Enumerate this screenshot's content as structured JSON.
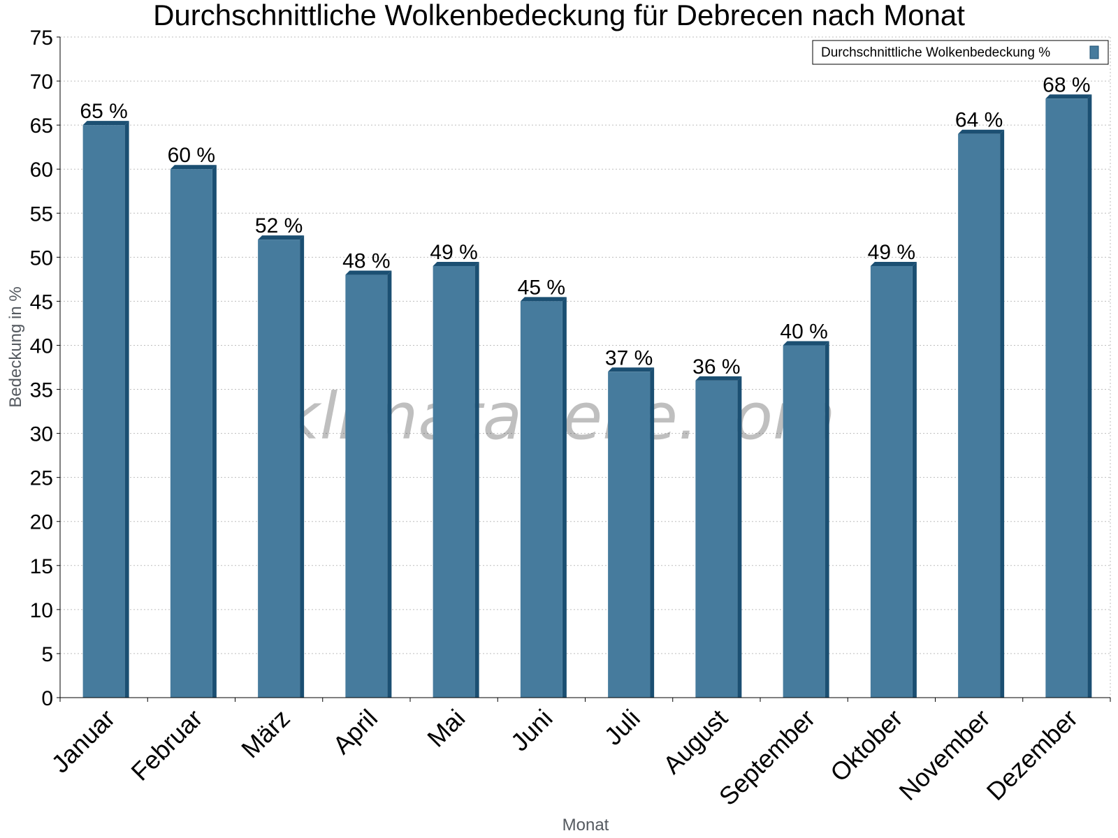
{
  "chart_data": {
    "type": "bar",
    "title": "Durchschnittliche Wolkenbedeckung für Debrecen nach Monat",
    "xlabel": "Monat",
    "ylabel": "Bedeckung in %",
    "categories": [
      "Januar",
      "Februar",
      "März",
      "April",
      "Mai",
      "Juni",
      "Juli",
      "August",
      "September",
      "Oktober",
      "November",
      "Dezember"
    ],
    "series": [
      {
        "name": "Durchschnittliche Wolkenbedeckung %",
        "values": [
          65,
          60,
          52,
          48,
          49,
          45,
          37,
          36,
          40,
          49,
          64,
          68
        ]
      }
    ],
    "data_labels": [
      "65 %",
      "60 %",
      "52 %",
      "48 %",
      "49 %",
      "45 %",
      "37 %",
      "36 %",
      "40 %",
      "49 %",
      "64 %",
      "68 %"
    ],
    "ylim": [
      0,
      75
    ],
    "yticks": [
      0,
      5,
      10,
      15,
      20,
      25,
      30,
      35,
      40,
      45,
      50,
      55,
      60,
      65,
      70,
      75
    ],
    "grid": true,
    "legend_position": "top-right",
    "bar_color": "#467b9d",
    "bar_edge_color": "#1b4f72",
    "watermark": "klimatabelle.com"
  }
}
